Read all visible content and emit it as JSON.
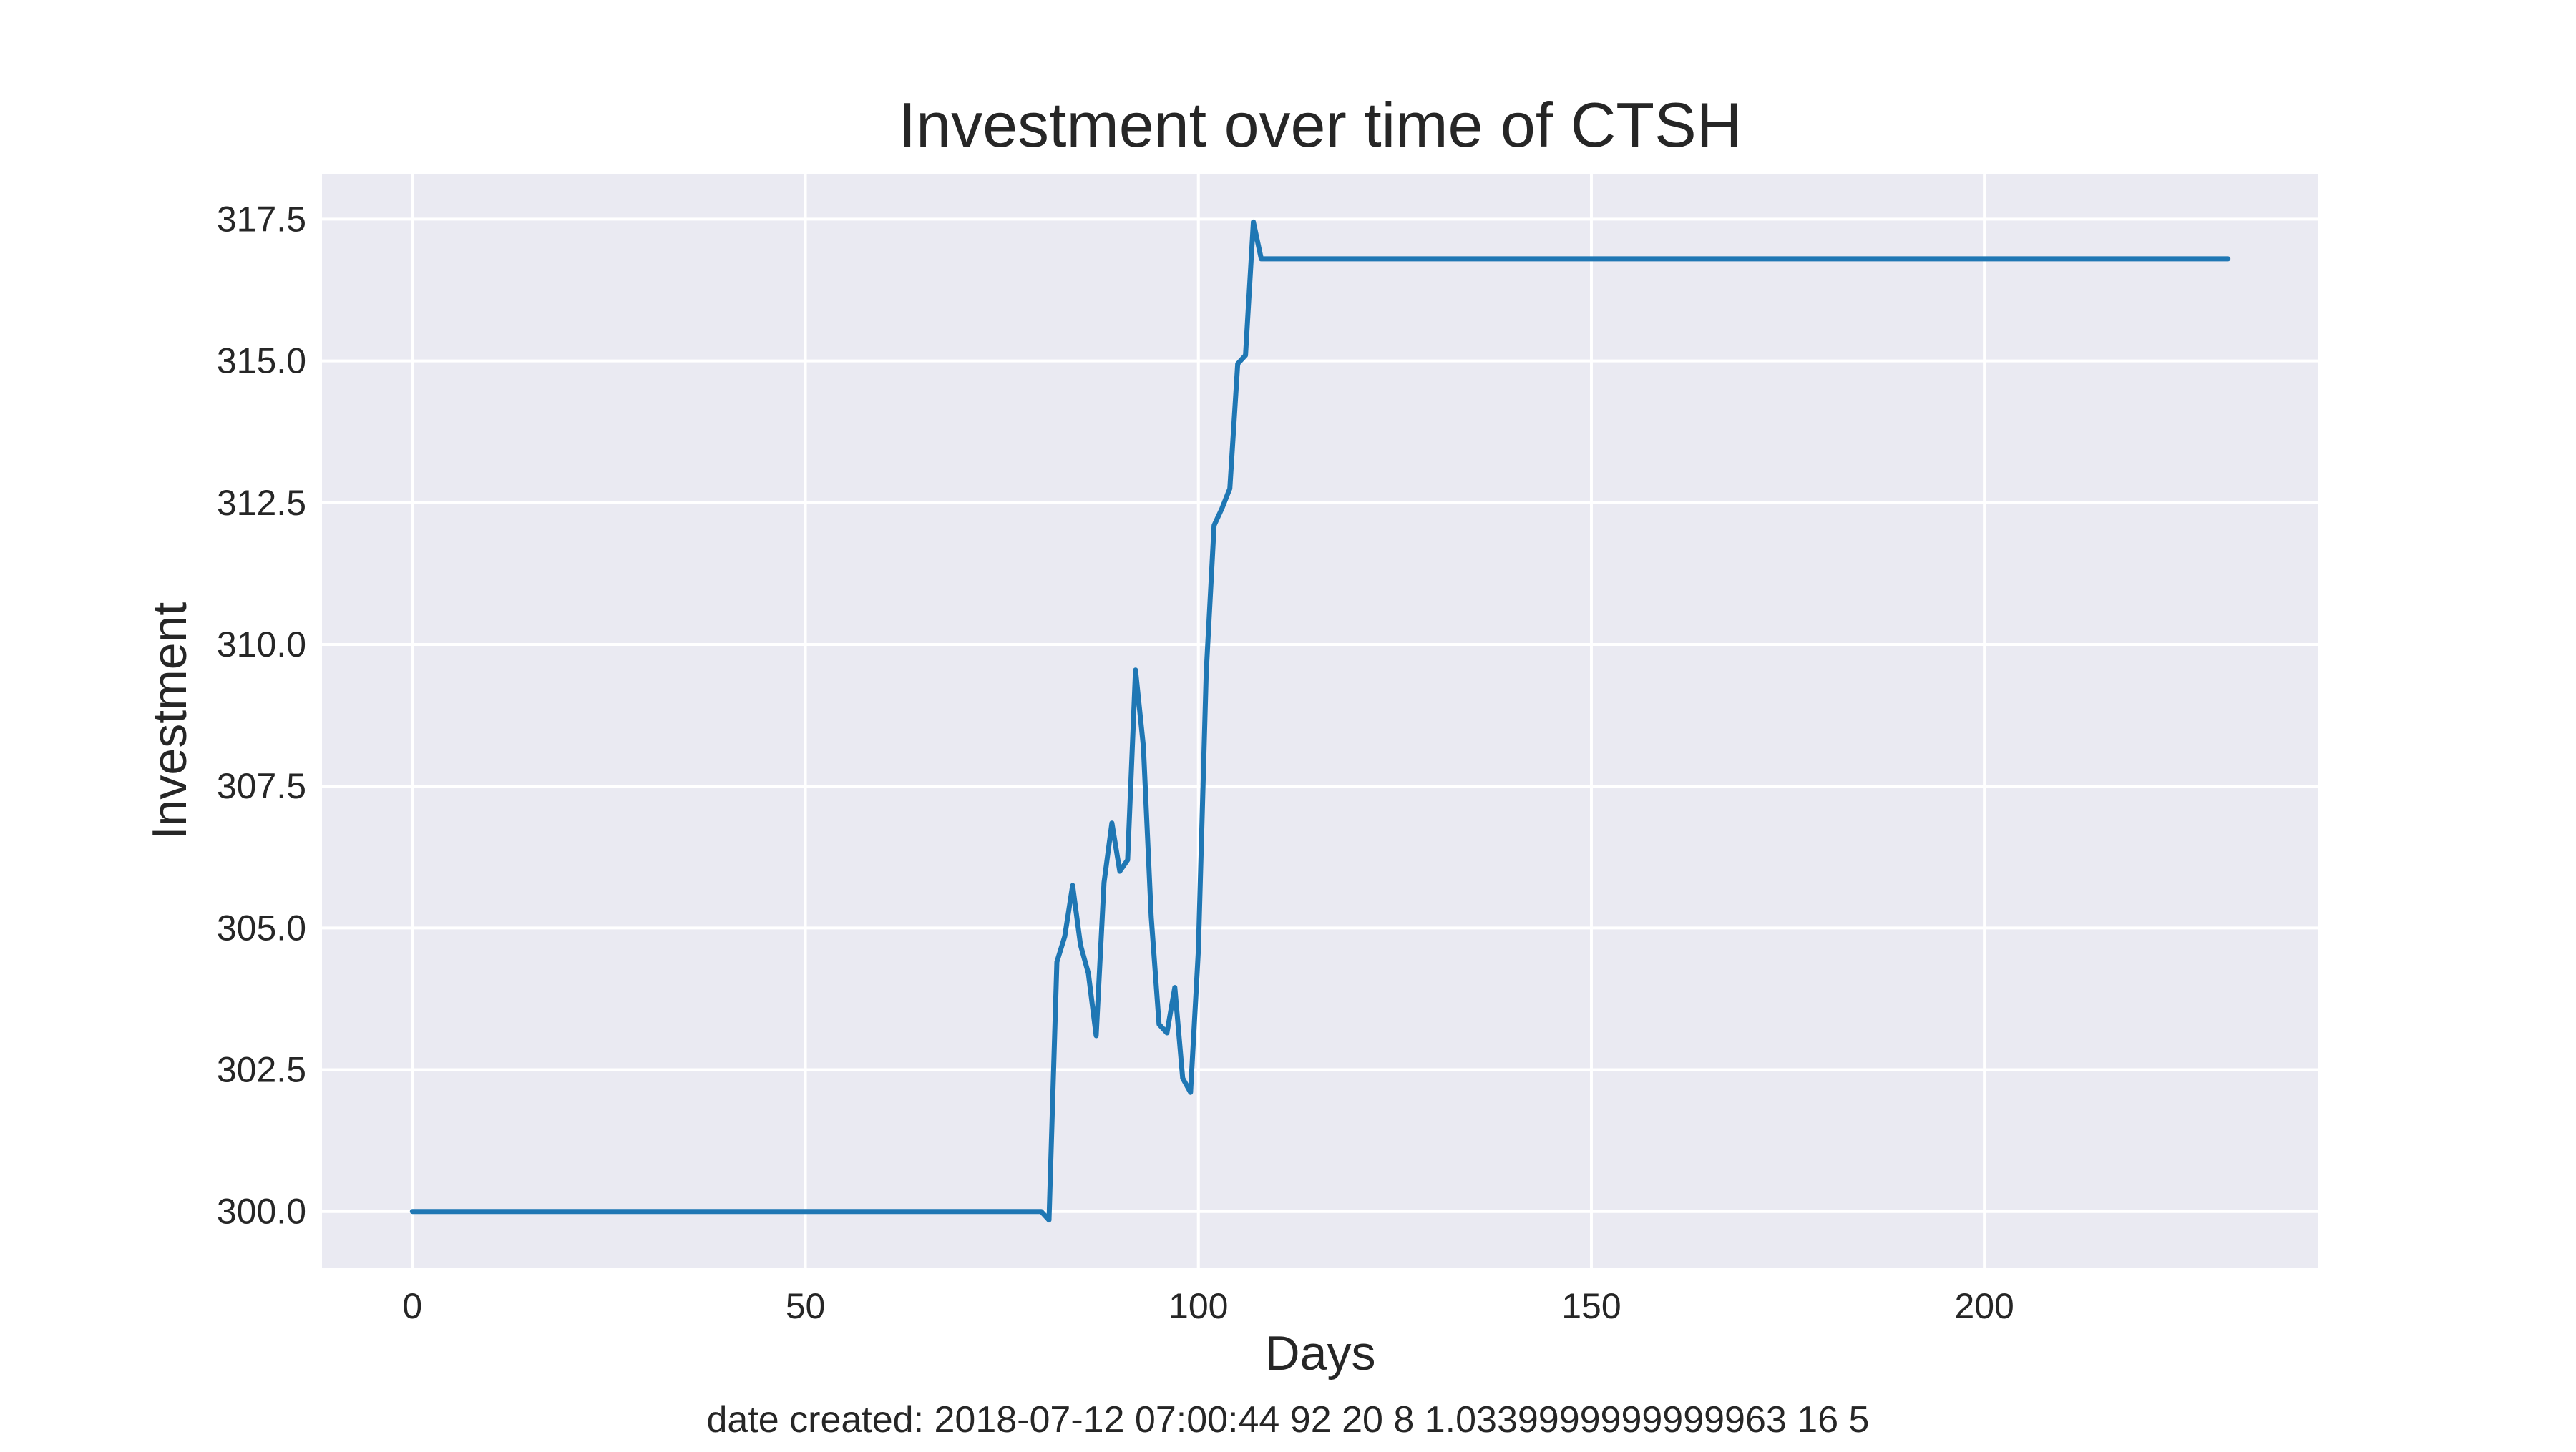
{
  "chart_data": {
    "type": "line",
    "title": "Investment over time of CTSH",
    "xlabel": "Days",
    "ylabel": "Investment",
    "footer": "date created: 2018-07-12 07:00:44 92 20 8 1.0339999999999963 16 5",
    "xlim": [
      -11.5,
      242.5
    ],
    "ylim": [
      299.0,
      318.3
    ],
    "x_ticks": [
      0,
      50,
      100,
      150,
      200
    ],
    "x_tick_labels": [
      "0",
      "50",
      "100",
      "150",
      "200"
    ],
    "y_ticks": [
      300.0,
      302.5,
      305.0,
      307.5,
      310.0,
      312.5,
      315.0,
      317.5
    ],
    "y_tick_labels": [
      "300.0",
      "302.5",
      "305.0",
      "307.5",
      "310.0",
      "312.5",
      "315.0",
      "317.5"
    ],
    "grid": true,
    "colors": {
      "line": "#1f77b4",
      "plot_background": "#eaeaf2",
      "grid": "#ffffff",
      "text": "#262626"
    },
    "series": [
      {
        "x": [
          0,
          80,
          81,
          82,
          83,
          84,
          85,
          86,
          87,
          88,
          89,
          90,
          91,
          92,
          93,
          94,
          95,
          96,
          97,
          98,
          99,
          100,
          101,
          102,
          103,
          104,
          105,
          106,
          107,
          108,
          231
        ],
        "y": [
          300.0,
          300.0,
          299.85,
          304.4,
          304.85,
          305.75,
          304.7,
          304.2,
          303.1,
          305.8,
          306.85,
          306.0,
          306.2,
          309.55,
          308.2,
          305.2,
          303.3,
          303.15,
          303.95,
          302.35,
          302.1,
          304.6,
          309.5,
          312.1,
          312.4,
          312.75,
          314.95,
          315.1,
          317.45,
          316.8,
          316.8
        ]
      }
    ]
  }
}
